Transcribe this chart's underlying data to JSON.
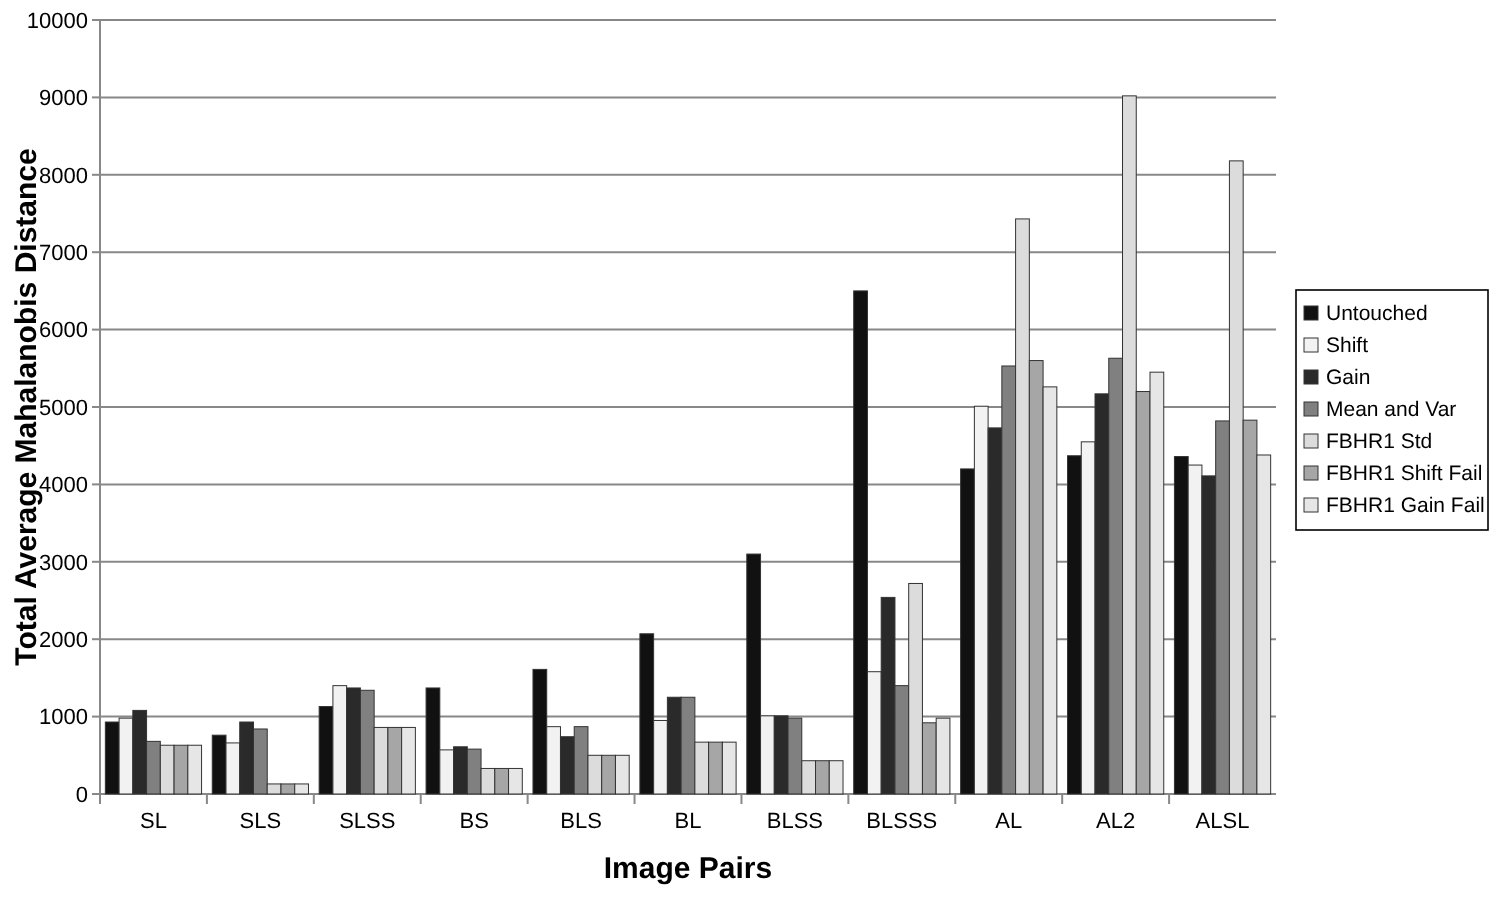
{
  "chart_data": {
    "type": "bar",
    "xlabel": "Image Pairs",
    "ylabel": "Total Average Mahalanobis Distance",
    "categories": [
      "SL",
      "SLS",
      "SLSS",
      "BS",
      "BLS",
      "BL",
      "BLSS",
      "BLSSS",
      "AL",
      "AL2",
      "ALSL"
    ],
    "series": [
      {
        "name": "Untouched",
        "color": "#111111",
        "values": [
          930,
          760,
          1130,
          1370,
          1610,
          2070,
          3100,
          6500,
          4200,
          4370,
          4360
        ]
      },
      {
        "name": "Shift",
        "color": "#f2f2f2",
        "values": [
          980,
          660,
          1400,
          570,
          870,
          950,
          1010,
          1580,
          5010,
          4550,
          4250
        ]
      },
      {
        "name": "Gain",
        "color": "#2a2a2a",
        "values": [
          1080,
          930,
          1370,
          610,
          740,
          1250,
          1010,
          2540,
          4730,
          5170,
          4110
        ]
      },
      {
        "name": "Mean and Var",
        "color": "#808080",
        "values": [
          680,
          840,
          1340,
          580,
          870,
          1250,
          980,
          1400,
          5530,
          5630,
          4820
        ]
      },
      {
        "name": "FBHR1 Std",
        "color": "#dcdcdc",
        "values": [
          630,
          130,
          860,
          330,
          500,
          670,
          430,
          2720,
          7430,
          9020,
          8180
        ]
      },
      {
        "name": "FBHR1 Shift Fail",
        "color": "#a6a6a6",
        "values": [
          630,
          130,
          860,
          330,
          500,
          670,
          430,
          920,
          5600,
          5200,
          4830
        ]
      },
      {
        "name": "FBHR1 Gain Fail",
        "color": "#e6e6e6",
        "values": [
          630,
          130,
          860,
          330,
          500,
          670,
          430,
          980,
          5260,
          5450,
          4380
        ]
      }
    ],
    "ylim": [
      0,
      10000
    ],
    "yticks": [
      0,
      1000,
      2000,
      3000,
      4000,
      5000,
      6000,
      7000,
      8000,
      9000,
      10000
    ],
    "grid": "y",
    "legend": "right"
  }
}
